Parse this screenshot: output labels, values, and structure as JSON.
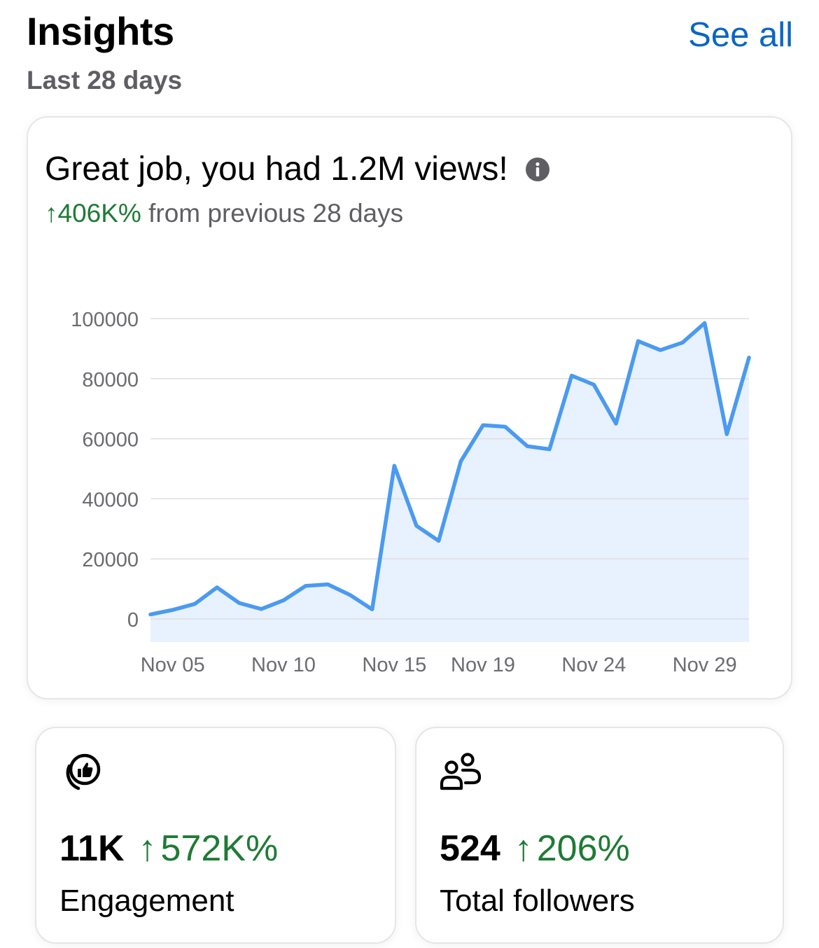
{
  "header": {
    "title": "Insights",
    "subtitle": "Last 28 days",
    "see_all_label": "See all"
  },
  "views_card": {
    "headline": "Great job, you had 1.2M views!",
    "info_icon": "info-circle-icon",
    "delta_arrow": "↑",
    "delta_value": "406K%",
    "delta_suffix": " from previous 28 days"
  },
  "chart_data": {
    "type": "area",
    "title": "",
    "xlabel": "",
    "ylabel": "",
    "ylim": [
      0,
      100000
    ],
    "yticks": [
      "100000",
      "80000",
      "60000",
      "40000",
      "20000",
      "0"
    ],
    "ytick_values": [
      100000,
      80000,
      60000,
      40000,
      20000,
      0
    ],
    "xtick_labels": [
      "Nov 05",
      "Nov 10",
      "Nov 15",
      "Nov 19",
      "Nov 24",
      "Nov 29"
    ],
    "grid": true,
    "line_color": "#4a9af0",
    "fill_color": "#e8f1fe",
    "series": [
      {
        "values": [
          1500,
          3000,
          5000,
          10500,
          5300,
          3300,
          6200,
          11000,
          11500,
          8000,
          3200,
          51000,
          31000,
          26000,
          52500,
          64500,
          64000,
          57500,
          56500,
          81000,
          78000,
          65000,
          92500,
          89500,
          92000,
          98500,
          61500,
          87000
        ]
      }
    ]
  },
  "stats": {
    "engagement": {
      "icon": "engagement-like-icon",
      "value": "11K",
      "arrow": "↑",
      "delta": "572K%",
      "label": "Engagement"
    },
    "followers": {
      "icon": "followers-people-icon",
      "value": "524",
      "arrow": "↑",
      "delta": "206%",
      "label": "Total followers"
    }
  },
  "colors": {
    "accent_link": "#0a66c2",
    "positive": "#1e7b34",
    "muted_text": "#5e5e63"
  }
}
